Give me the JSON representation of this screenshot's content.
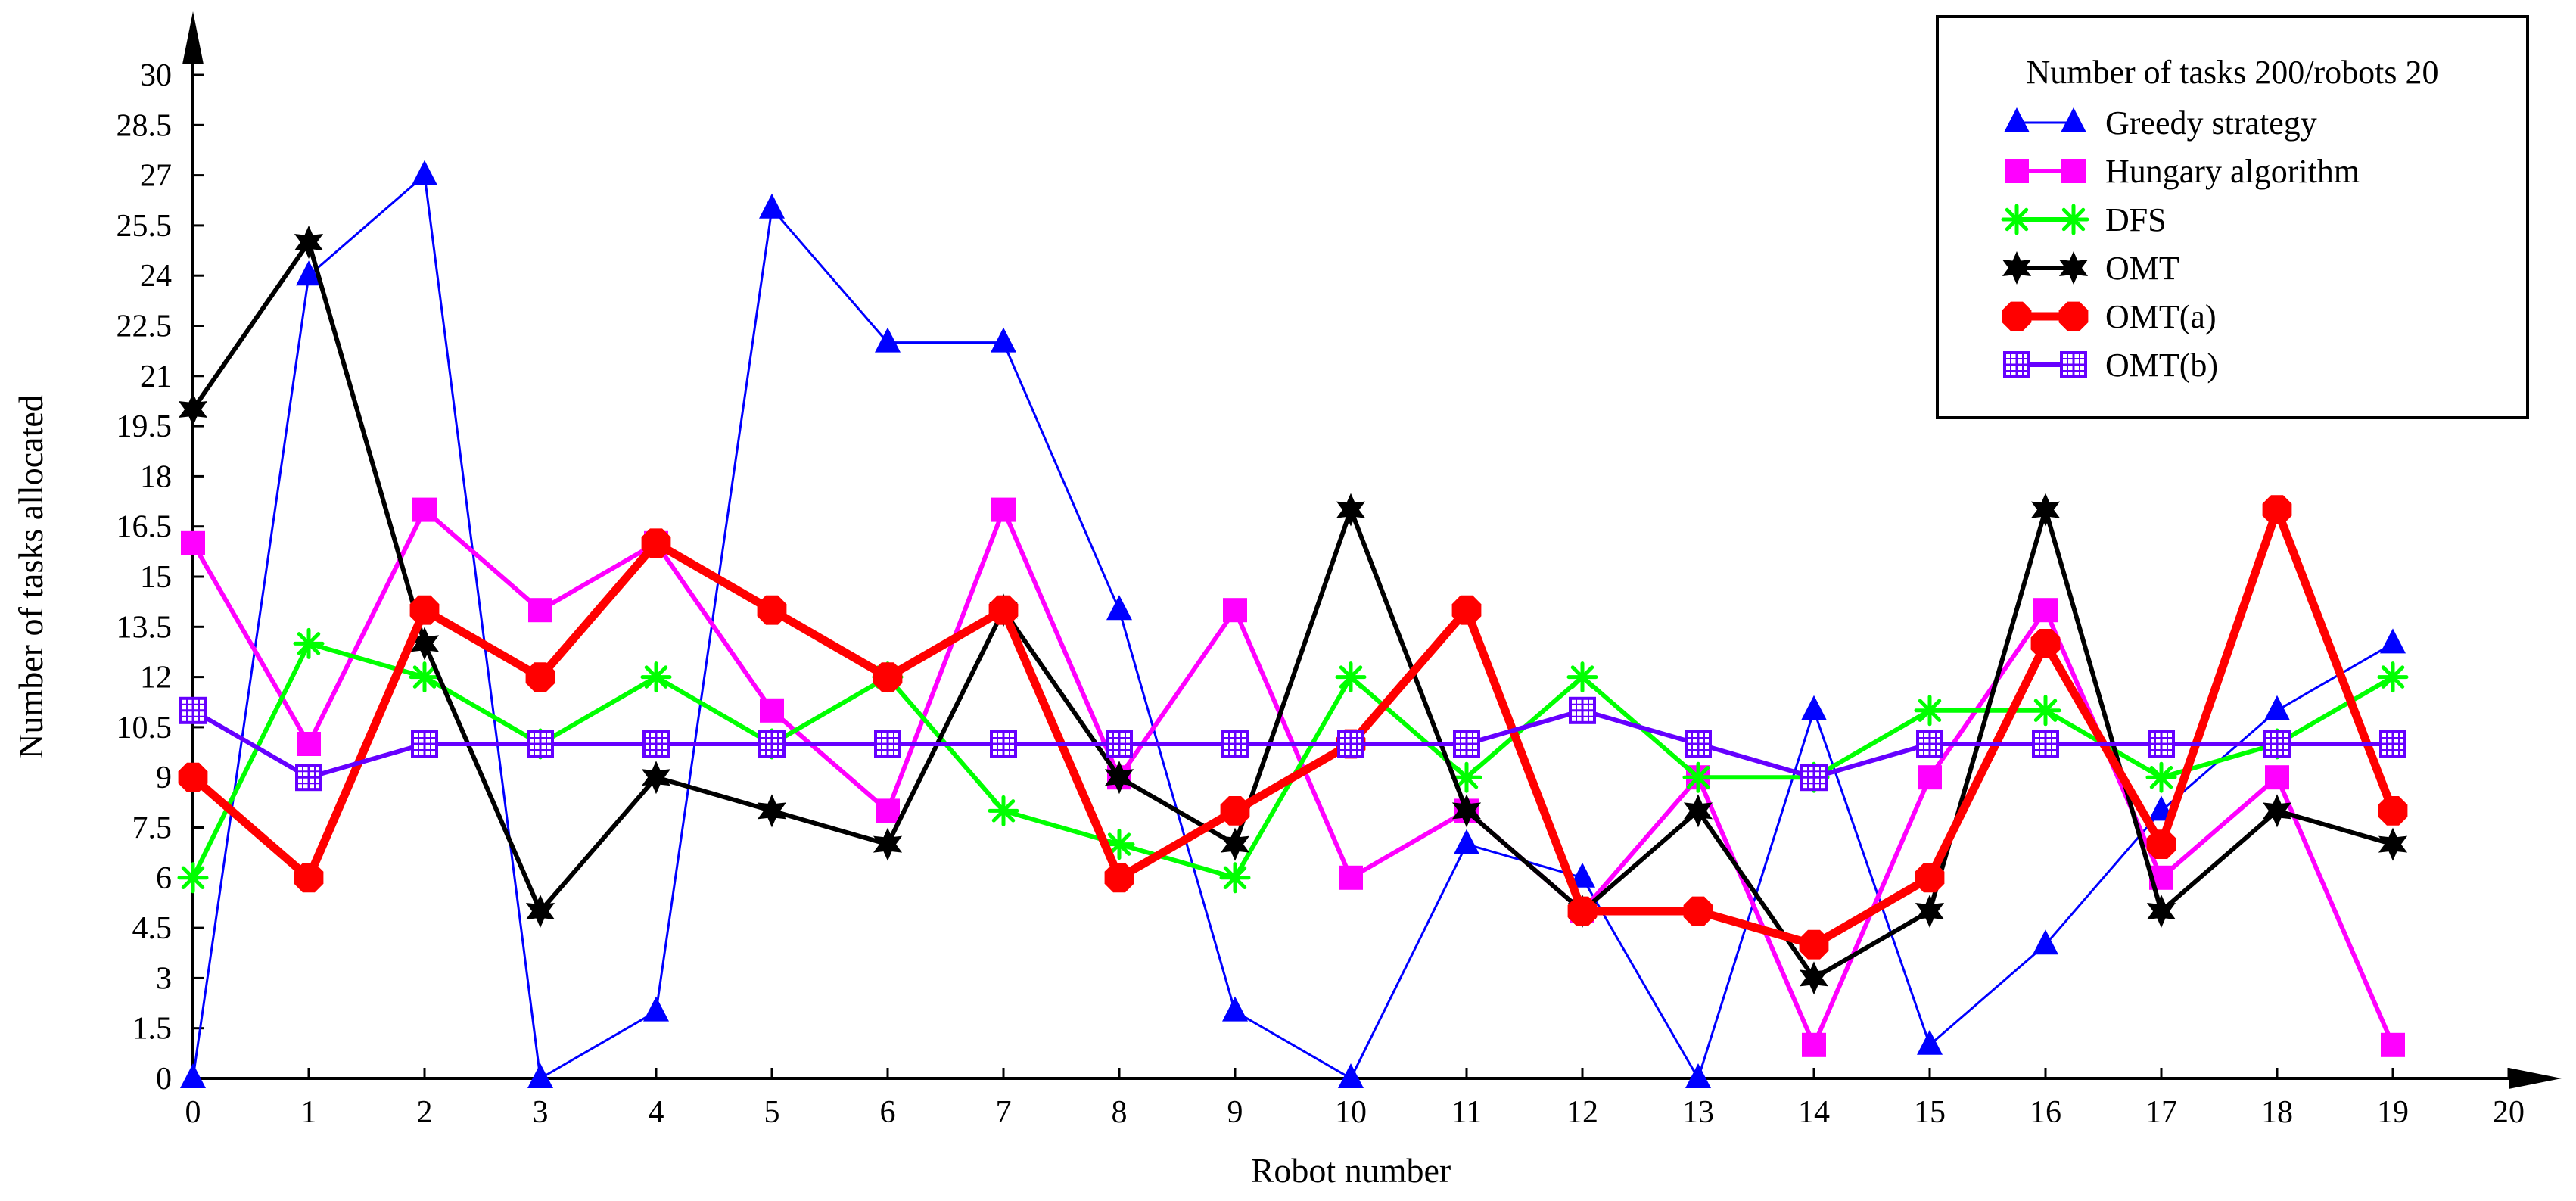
{
  "chart_data": {
    "type": "line",
    "title": "",
    "xlabel": "Robot number",
    "ylabel": "Number of tasks allocated",
    "xlim": [
      0,
      20
    ],
    "ylim": [
      0,
      30
    ],
    "x_ticks": [
      0,
      1,
      2,
      3,
      4,
      5,
      6,
      7,
      8,
      9,
      10,
      11,
      12,
      13,
      14,
      15,
      16,
      17,
      18,
      19,
      20
    ],
    "x_tick_labels": [
      "0",
      "1",
      "2",
      "3",
      "4",
      "5",
      "6",
      "7",
      "8",
      "9",
      "10",
      "11",
      "12",
      "13",
      "14",
      "15",
      "16",
      "17",
      "18",
      "19",
      "20"
    ],
    "y_ticks": [
      0,
      1.5,
      3,
      4.5,
      6,
      7.5,
      9,
      10.5,
      12,
      13.5,
      15,
      16.5,
      18,
      19.5,
      21,
      22.5,
      24,
      25.5,
      27,
      28.5,
      30
    ],
    "y_tick_labels": [
      "0",
      "1.5",
      "3",
      "4.5",
      "6",
      "7.5",
      "9",
      "10.5",
      "12",
      "13.5",
      "15",
      "16.5",
      "18",
      "19.5",
      "21",
      "22.5",
      "24",
      "25.5",
      "27",
      "28.5",
      "30"
    ],
    "grid": false,
    "legend": {
      "title": "Number of tasks 200/robots 20",
      "placement": "top-right"
    },
    "x": [
      0,
      1,
      2,
      3,
      4,
      5,
      6,
      7,
      8,
      9,
      10,
      11,
      12,
      13,
      14,
      15,
      16,
      17,
      18,
      19
    ],
    "series": [
      {
        "name": "Greedy strategy",
        "color": "#0000ff",
        "marker": "triangle",
        "line": "thin",
        "values": [
          0,
          24,
          27,
          0,
          2,
          26,
          22,
          22,
          14,
          2,
          0,
          7,
          6,
          0,
          11,
          1,
          4,
          8,
          11,
          13
        ]
      },
      {
        "name": "Hungary algorithm",
        "color": "#ff00ff",
        "marker": "square",
        "line": "medium",
        "values": [
          16,
          10,
          17,
          14,
          16,
          11,
          8,
          17,
          9,
          14,
          6,
          8,
          5,
          9,
          1,
          9,
          14,
          6,
          9,
          1
        ]
      },
      {
        "name": "DFS",
        "color": "#00ff00",
        "marker": "asterisk",
        "line": "medium",
        "values": [
          6,
          13,
          12,
          10,
          12,
          10,
          12,
          8,
          7,
          6,
          12,
          9,
          12,
          9,
          9,
          11,
          11,
          9,
          10,
          12
        ]
      },
      {
        "name": "OMT",
        "color": "#000000",
        "marker": "star",
        "line": "medium",
        "values": [
          20,
          25,
          13,
          5,
          9,
          8,
          7,
          14,
          9,
          7,
          17,
          8,
          5,
          8,
          3,
          5,
          17,
          5,
          8,
          7
        ]
      },
      {
        "name": "OMT(a)",
        "color": "#ff0000",
        "marker": "octagon",
        "line": "thick",
        "values": [
          9,
          6,
          14,
          12,
          16,
          14,
          12,
          14,
          6,
          8,
          10,
          14,
          5,
          5,
          4,
          6,
          13,
          7,
          17,
          8
        ]
      },
      {
        "name": "OMT(b)",
        "color": "#6600ff",
        "marker": "boxplus",
        "line": "medium",
        "values": [
          11,
          9,
          10,
          10,
          10,
          10,
          10,
          10,
          10,
          10,
          10,
          10,
          11,
          10,
          9,
          10,
          10,
          10,
          10,
          10
        ]
      }
    ]
  }
}
